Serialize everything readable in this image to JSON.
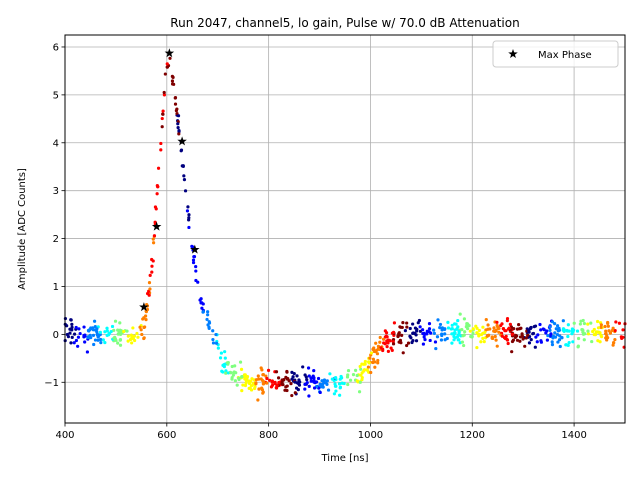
{
  "chart_data": {
    "type": "scatter",
    "title": "Run 2047, channel5, lo gain, Pulse w/ 70.0 dB Attenuation",
    "xlabel": "Time [ns]",
    "ylabel": "Amplitude [ADC Counts]",
    "xlim": [
      400,
      1500
    ],
    "ylim": [
      -1.85,
      6.25
    ],
    "xticks": [
      400,
      600,
      800,
      1000,
      1200,
      1400
    ],
    "yticks": [
      -1,
      0,
      1,
      2,
      3,
      4,
      5,
      6
    ],
    "grid": true,
    "legend": {
      "position": "top-right",
      "entries": [
        "Max Phase"
      ]
    },
    "colormap": "jet",
    "colors": [
      "#00007f",
      "#0000ff",
      "#007fff",
      "#00ffff",
      "#7fff7f",
      "#ffff00",
      "#ff7f00",
      "#ff0000",
      "#7f0000"
    ],
    "waveform": [
      [
        400,
        0.02
      ],
      [
        540,
        0.0
      ],
      [
        555,
        0.15
      ],
      [
        565,
        0.9
      ],
      [
        575,
        2.0
      ],
      [
        585,
        3.6
      ],
      [
        595,
        5.1
      ],
      [
        605,
        5.85
      ],
      [
        612,
        5.2
      ],
      [
        620,
        4.6
      ],
      [
        630,
        3.7
      ],
      [
        640,
        2.7
      ],
      [
        650,
        1.8
      ],
      [
        660,
        1.1
      ],
      [
        670,
        0.6
      ],
      [
        690,
        0.0
      ],
      [
        710,
        -0.55
      ],
      [
        730,
        -0.85
      ],
      [
        760,
        -0.97
      ],
      [
        800,
        -1.0
      ],
      [
        900,
        -1.02
      ],
      [
        960,
        -1.0
      ],
      [
        985,
        -0.85
      ],
      [
        1000,
        -0.6
      ],
      [
        1015,
        -0.35
      ],
      [
        1030,
        -0.12
      ],
      [
        1050,
        0.02
      ],
      [
        1500,
        0.02
      ]
    ],
    "series": [
      {
        "name": "Max Phase",
        "marker": "star",
        "color": "#000000",
        "x": [
          555,
          580,
          605,
          630,
          655
        ],
        "y": [
          0.57,
          2.25,
          5.87,
          4.03,
          1.77
        ]
      }
    ]
  }
}
